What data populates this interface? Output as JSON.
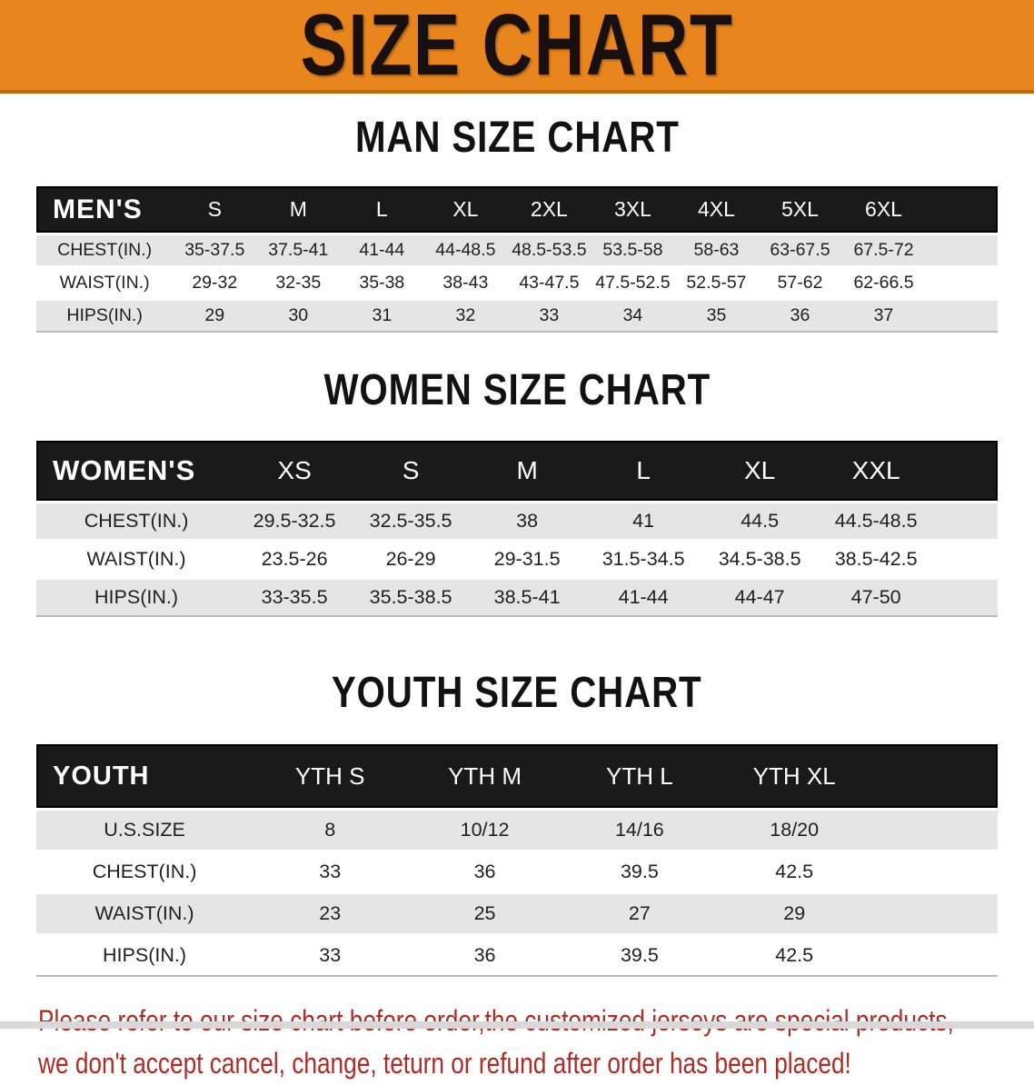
{
  "banner": {
    "title": "SIZE CHART"
  },
  "colors": {
    "banner_bg": "#E8861D",
    "banner_border": "#BC6A10",
    "bar_bg": "#1A1A1A",
    "bar_text": "#FFFFFF",
    "row_alt_bg": "#E5E5E5",
    "row_text": "#1F1F1F",
    "accent_red": "#AE2C24",
    "strip_gray": "#D8D8D8"
  },
  "sections": [
    {
      "title": "MAN SIZE CHART",
      "header_label": "MEN'S",
      "columns": [
        "S",
        "M",
        "L",
        "XL",
        "2XL",
        "3XL",
        "4XL",
        "5XL",
        "6XL"
      ],
      "rows": [
        {
          "label": "CHEST(IN.)",
          "values": [
            "35-37.5",
            "37.5-41",
            "41-44",
            "44-48.5",
            "48.5-53.5",
            "53.5-58",
            "58-63",
            "63-67.5",
            "67.5-72"
          ]
        },
        {
          "label": "WAIST(IN.)",
          "values": [
            "29-32",
            "32-35",
            "35-38",
            "38-43",
            "43-47.5",
            "47.5-52.5",
            "52.5-57",
            "57-62",
            "62-66.5"
          ]
        },
        {
          "label": "HIPS(IN.)",
          "values": [
            "29",
            "30",
            "31",
            "32",
            "33",
            "34",
            "35",
            "36",
            "37"
          ]
        }
      ]
    },
    {
      "title": "WOMEN SIZE CHART",
      "header_label": "WOMEN'S",
      "columns": [
        "XS",
        "S",
        "M",
        "L",
        "XL",
        "XXL"
      ],
      "rows": [
        {
          "label": "CHEST(IN.)",
          "values": [
            "29.5-32.5",
            "32.5-35.5",
            "38",
            "41",
            "44.5",
            "44.5-48.5"
          ]
        },
        {
          "label": "WAIST(IN.)",
          "values": [
            "23.5-26",
            "26-29",
            "29-31.5",
            "31.5-34.5",
            "34.5-38.5",
            "38.5-42.5"
          ]
        },
        {
          "label": "HIPS(IN.)",
          "values": [
            "33-35.5",
            "35.5-38.5",
            "38.5-41",
            "41-44",
            "44-47",
            "47-50"
          ]
        }
      ]
    },
    {
      "title": "YOUTH SIZE CHART",
      "header_label": "YOUTH",
      "columns": [
        "YTH S",
        "YTH M",
        "YTH L",
        "YTH XL"
      ],
      "rows": [
        {
          "label": "U.S.SIZE",
          "values": [
            "8",
            "10/12",
            "14/16",
            "18/20"
          ]
        },
        {
          "label": "CHEST(IN.)",
          "values": [
            "33",
            "36",
            "39.5",
            "42.5"
          ]
        },
        {
          "label": "WAIST(IN.)",
          "values": [
            "23",
            "25",
            "27",
            "29"
          ]
        },
        {
          "label": "HIPS(IN.)",
          "values": [
            "33",
            "36",
            "39.5",
            "42.5"
          ]
        }
      ]
    }
  ],
  "disclaimer": {
    "line1": "Please refer to our size chart before order,the customized jerseys are special products,",
    "line2": "we don't accept cancel, change, teturn or refund after order has been placed!"
  }
}
